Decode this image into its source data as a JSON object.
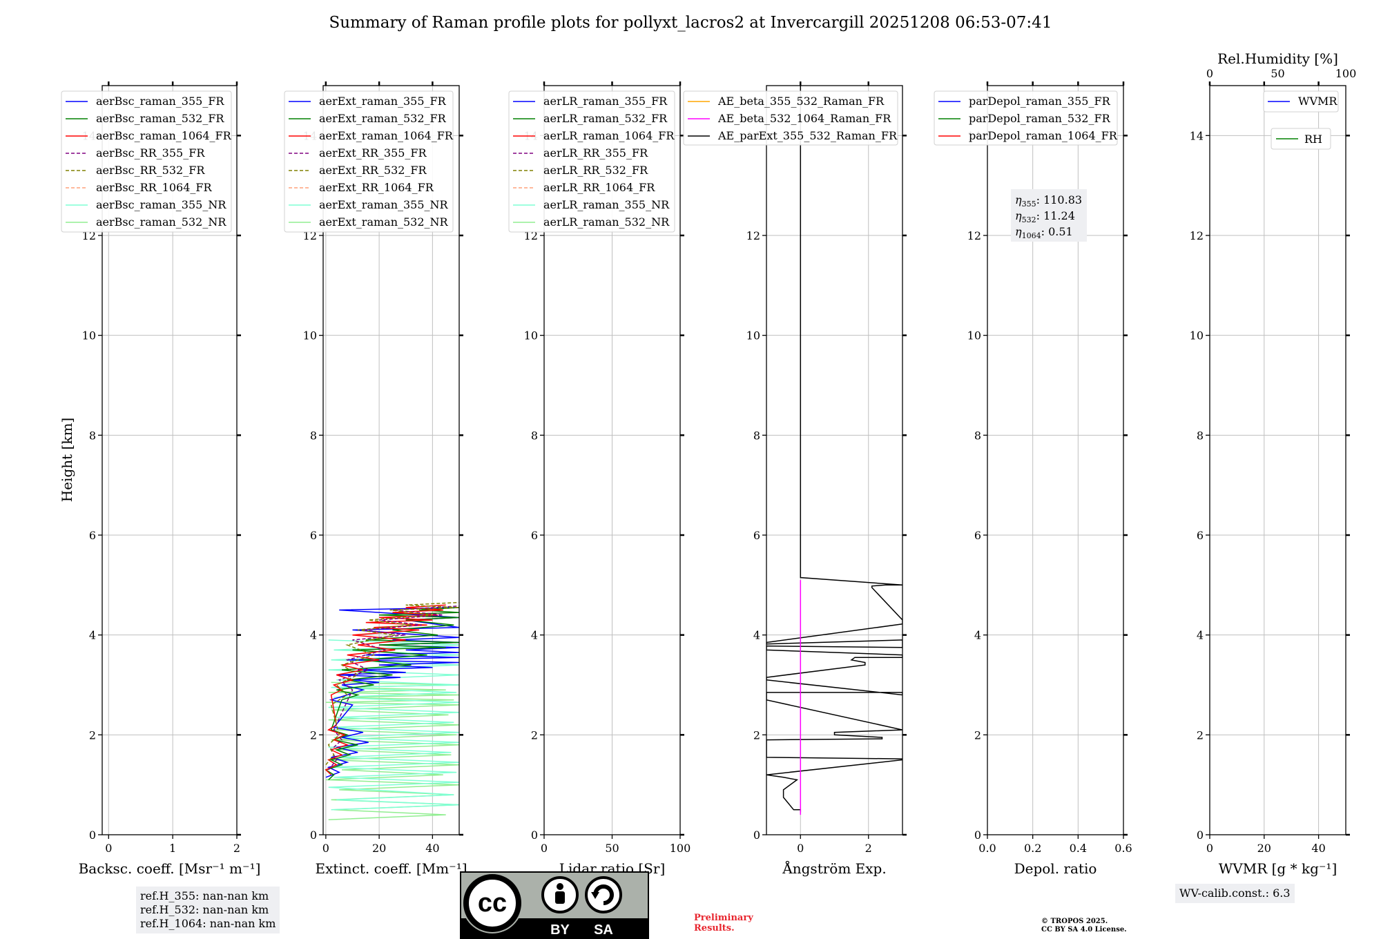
{
  "title": "Summary of Raman profile plots for pollyxt_lacros2 at Invercargill 20251208 06:53-07:41",
  "colors": {
    "blue": "#0000ff",
    "green": "#008000",
    "red": "#ff0000",
    "purple": "#800080",
    "olive": "#808000",
    "salmon": "#ffa07a",
    "cyan": "#7fffd4",
    "lightgreen": "#90ee90",
    "orange": "#ffa500",
    "magenta": "#ff00ff",
    "black": "#000000",
    "grid": "#bfbfbf",
    "legend_bg": "#ffffff",
    "note_bg": "#eeeff2",
    "prelim": "#e8262f"
  },
  "chart_data": [
    {
      "type": "line",
      "id": "backscatter",
      "xlabel": "Backsc. coeff. [Msr⁻¹ m⁻¹]",
      "ylabel": "Height [km]",
      "xlim": [
        -0.1,
        2
      ],
      "ylim": [
        0,
        15
      ],
      "xticks": [
        "0",
        "1",
        "2"
      ],
      "xtick_values": [
        0,
        1,
        2
      ],
      "yticks": [
        "0",
        "2",
        "4",
        "6",
        "8",
        "10",
        "12",
        "14"
      ],
      "legend": [
        {
          "label": "aerBsc_raman_355_FR",
          "color": "#0000ff",
          "style": "solid"
        },
        {
          "label": "aerBsc_raman_532_FR",
          "color": "#008000",
          "style": "solid"
        },
        {
          "label": "aerBsc_raman_1064_FR",
          "color": "#ff0000",
          "style": "solid"
        },
        {
          "label": "aerBsc_RR_355_FR",
          "color": "#800080",
          "style": "dashed"
        },
        {
          "label": "aerBsc_RR_532_FR",
          "color": "#808000",
          "style": "dashed"
        },
        {
          "label": "aerBsc_RR_1064_FR",
          "color": "#ffa07a",
          "style": "dashed"
        },
        {
          "label": "aerBsc_raman_355_NR",
          "color": "#7fffd4",
          "style": "solid"
        },
        {
          "label": "aerBsc_raman_532_NR",
          "color": "#90ee90",
          "style": "solid"
        }
      ],
      "series": []
    },
    {
      "type": "line",
      "id": "extinction",
      "xlabel": "Extinct. coeff. [Mm⁻¹]",
      "xlim": [
        -1,
        50
      ],
      "ylim": [
        0,
        15
      ],
      "xticks": [
        "0",
        "20",
        "40"
      ],
      "xtick_values": [
        0,
        20,
        40
      ],
      "yticks": [
        "0",
        "2",
        "4",
        "6",
        "8",
        "10",
        "12",
        "14"
      ],
      "legend": [
        {
          "label": "aerExt_raman_355_FR",
          "color": "#0000ff",
          "style": "solid"
        },
        {
          "label": "aerExt_raman_532_FR",
          "color": "#008000",
          "style": "solid"
        },
        {
          "label": "aerExt_raman_1064_FR",
          "color": "#ff0000",
          "style": "solid"
        },
        {
          "label": "aerExt_RR_355_FR",
          "color": "#800080",
          "style": "dashed"
        },
        {
          "label": "aerExt_RR_532_FR",
          "color": "#808000",
          "style": "dashed"
        },
        {
          "label": "aerExt_RR_1064_FR",
          "color": "#ffa07a",
          "style": "dashed"
        },
        {
          "label": "aerExt_raman_355_NR",
          "color": "#7fffd4",
          "style": "solid"
        },
        {
          "label": "aerExt_raman_532_NR",
          "color": "#90ee90",
          "style": "solid"
        }
      ],
      "series": [
        {
          "name": "aerExt_raman_532_NR",
          "color": "#90ee90",
          "x": [
            1,
            45,
            3,
            50,
            2,
            48,
            5,
            50,
            0,
            44,
            6,
            50,
            1,
            47,
            4,
            50,
            2,
            49,
            3,
            50,
            1,
            46,
            2,
            50,
            0,
            48,
            4,
            50,
            1,
            45,
            3,
            50,
            2
          ],
          "y": [
            0.3,
            0.4,
            0.5,
            0.6,
            0.7,
            0.8,
            0.9,
            1.0,
            1.1,
            1.2,
            1.3,
            1.4,
            1.5,
            1.6,
            1.7,
            1.8,
            1.9,
            2.0,
            2.1,
            2.2,
            2.3,
            2.4,
            2.5,
            2.6,
            2.65,
            2.7,
            2.75,
            2.8,
            2.85,
            2.9,
            2.95,
            3.0,
            3.05
          ]
        },
        {
          "name": "aerExt_raman_355_NR",
          "color": "#7fffd4",
          "x": [
            2,
            50,
            4,
            48,
            1,
            50,
            3,
            49,
            2,
            50,
            5,
            47,
            1,
            50,
            3,
            50,
            2,
            48,
            4,
            50,
            1,
            50,
            3,
            49,
            2,
            50,
            4,
            50,
            1,
            50,
            2,
            50,
            3,
            50,
            1
          ],
          "y": [
            0.5,
            0.6,
            0.7,
            0.8,
            0.95,
            1.05,
            1.15,
            1.25,
            1.35,
            1.45,
            1.55,
            1.65,
            1.75,
            1.85,
            1.95,
            2.05,
            2.15,
            2.25,
            2.35,
            2.45,
            2.55,
            2.65,
            2.75,
            2.85,
            2.95,
            3.0,
            3.1,
            3.2,
            3.3,
            3.4,
            3.5,
            3.6,
            3.7,
            3.8,
            3.9
          ]
        },
        {
          "name": "aerExt_raman_355_FR",
          "color": "#0000ff",
          "x": [
            0,
            5,
            1,
            8,
            2,
            12,
            4,
            16,
            6,
            14,
            3,
            10,
            2,
            8,
            14,
            6,
            20,
            10,
            28,
            4,
            30,
            12,
            40,
            20,
            50,
            8,
            50,
            15,
            50,
            30,
            50,
            20,
            50,
            25,
            50,
            10,
            50,
            30,
            50,
            5,
            50
          ],
          "y": [
            1.15,
            1.25,
            1.35,
            1.45,
            1.55,
            1.65,
            1.75,
            1.85,
            1.95,
            2.05,
            2.15,
            2.6,
            2.7,
            2.8,
            2.9,
            3.0,
            3.05,
            3.1,
            3.15,
            3.2,
            3.25,
            3.3,
            3.35,
            3.4,
            3.45,
            3.5,
            3.55,
            3.6,
            3.65,
            3.7,
            3.75,
            3.8,
            3.85,
            3.9,
            3.95,
            4.1,
            4.15,
            4.3,
            4.35,
            4.5,
            4.55
          ]
        },
        {
          "name": "aerExt_raman_532_FR",
          "color": "#008000",
          "x": [
            1,
            3,
            0,
            6,
            2,
            9,
            4,
            12,
            3,
            8,
            2,
            6,
            12,
            4,
            18,
            8,
            25,
            6,
            32,
            14,
            38,
            10,
            45,
            20,
            50,
            15,
            42,
            25,
            48,
            30,
            50,
            20,
            50,
            35,
            50
          ],
          "y": [
            1.1,
            1.2,
            1.3,
            1.4,
            1.5,
            1.6,
            1.7,
            1.8,
            1.9,
            2.0,
            2.1,
            2.7,
            2.8,
            2.9,
            3.0,
            3.1,
            3.2,
            3.3,
            3.4,
            3.5,
            3.6,
            3.7,
            3.75,
            3.8,
            3.85,
            3.9,
            4.0,
            4.1,
            4.2,
            4.3,
            4.35,
            4.4,
            4.45,
            4.5,
            4.55
          ]
        },
        {
          "name": "aerExt_raman_1064_FR",
          "color": "#ff0000",
          "x": [
            2,
            0,
            4,
            1,
            6,
            2,
            8,
            3,
            7,
            1,
            4,
            2,
            6,
            3,
            10,
            4,
            14,
            6,
            20,
            8,
            26,
            12,
            30,
            10,
            35,
            18,
            38,
            15,
            40,
            20,
            42,
            25,
            44,
            30,
            45
          ],
          "y": [
            1.2,
            1.3,
            1.4,
            1.5,
            1.6,
            1.7,
            1.8,
            1.9,
            2.0,
            2.1,
            2.2,
            2.8,
            2.9,
            3.0,
            3.1,
            3.2,
            3.3,
            3.4,
            3.5,
            3.6,
            3.7,
            3.8,
            3.9,
            4.0,
            4.1,
            4.15,
            4.2,
            4.25,
            4.3,
            4.35,
            4.4,
            4.45,
            4.5,
            4.55,
            4.6
          ]
        },
        {
          "name": "aerExt_RR_355_FR",
          "color": "#800080",
          "dashed": true,
          "x": [
            1,
            4,
            2,
            6,
            3,
            10,
            5,
            16,
            8,
            22,
            10,
            30,
            14,
            36,
            20,
            44,
            25,
            50
          ],
          "y": [
            1.3,
            1.5,
            1.7,
            1.9,
            2.1,
            2.9,
            3.1,
            3.3,
            3.5,
            3.7,
            3.9,
            4.0,
            4.1,
            4.2,
            4.3,
            4.4,
            4.5,
            4.58
          ]
        },
        {
          "name": "aerExt_RR_532_FR",
          "color": "#808000",
          "dashed": true,
          "x": [
            0,
            3,
            1,
            5,
            2,
            8,
            4,
            12,
            6,
            18,
            8,
            26,
            12,
            32,
            16,
            40,
            24,
            50,
            30,
            50
          ],
          "y": [
            1.4,
            1.6,
            1.8,
            2.0,
            2.6,
            2.8,
            3.0,
            3.2,
            3.4,
            3.6,
            3.8,
            4.0,
            4.1,
            4.2,
            4.3,
            4.4,
            4.5,
            4.55,
            4.6,
            4.65
          ]
        }
      ]
    },
    {
      "type": "line",
      "id": "lidar_ratio",
      "xlabel": "Lidar ratio [Sr]",
      "xlim": [
        0,
        100
      ],
      "ylim": [
        0,
        15
      ],
      "xticks": [
        "0",
        "50",
        "100"
      ],
      "xtick_values": [
        0,
        50,
        100
      ],
      "yticks": [
        "0",
        "2",
        "4",
        "6",
        "8",
        "10",
        "12",
        "14"
      ],
      "legend": [
        {
          "label": "aerLR_raman_355_FR",
          "color": "#0000ff",
          "style": "solid"
        },
        {
          "label": "aerLR_raman_532_FR",
          "color": "#008000",
          "style": "solid"
        },
        {
          "label": "aerLR_raman_1064_FR",
          "color": "#ff0000",
          "style": "solid"
        },
        {
          "label": "aerLR_RR_355_FR",
          "color": "#800080",
          "style": "dashed"
        },
        {
          "label": "aerLR_RR_532_FR",
          "color": "#808000",
          "style": "dashed"
        },
        {
          "label": "aerLR_RR_1064_FR",
          "color": "#ffa07a",
          "style": "dashed"
        },
        {
          "label": "aerLR_raman_355_NR",
          "color": "#7fffd4",
          "style": "solid"
        },
        {
          "label": "aerLR_raman_532_NR",
          "color": "#90ee90",
          "style": "solid"
        }
      ],
      "series": []
    },
    {
      "type": "line",
      "id": "angstrom",
      "xlabel": "Ångström Exp.",
      "xlim": [
        -1,
        3
      ],
      "ylim": [
        0,
        15
      ],
      "xticks": [
        "0",
        "2"
      ],
      "xtick_values": [
        0,
        2
      ],
      "yticks": [
        "0",
        "2",
        "4",
        "6",
        "8",
        "10",
        "12",
        "14"
      ],
      "legend": [
        {
          "label": "AE_beta_355_532_Raman_FR",
          "color": "#ffa500",
          "style": "solid"
        },
        {
          "label": "AE_beta_532_1064_Raman_FR",
          "color": "#ff00ff",
          "style": "solid"
        },
        {
          "label": "AE_parExt_355_532_Raman_FR",
          "color": "#000000",
          "style": "solid"
        }
      ],
      "series": [
        {
          "name": "AE_parExt_355_532_Raman_FR",
          "color": "#000000",
          "x": [
            0,
            0,
            3,
            2.5,
            2.1,
            2.1,
            3,
            3,
            -1,
            -1,
            3,
            3,
            -1,
            -1,
            3,
            3,
            1.6,
            1.5,
            1.9,
            1.9,
            -1,
            -1,
            3,
            3,
            -1,
            -1,
            3,
            3,
            1.0,
            1.0,
            2.4,
            2.4,
            -1,
            -1,
            3,
            3,
            -1,
            -0.5,
            -0.1,
            -0.5,
            -0.5,
            -0.2,
            0,
            0
          ],
          "y": [
            15,
            5.15,
            5.0,
            5.0,
            4.98,
            4.95,
            4.3,
            4.22,
            3.85,
            3.82,
            3.9,
            3.75,
            3.78,
            3.7,
            3.6,
            3.55,
            3.55,
            3.5,
            3.45,
            3.4,
            3.15,
            3.1,
            2.8,
            2.85,
            2.85,
            2.7,
            2.1,
            2.1,
            2.05,
            2.0,
            1.95,
            1.92,
            1.9,
            1.55,
            1.52,
            1.5,
            1.2,
            1.15,
            1.1,
            0.9,
            0.75,
            0.5,
            0.5,
            0.45
          ]
        },
        {
          "name": "AE_beta_532_1064_Raman_FR",
          "color": "#ff00ff",
          "x": [
            0,
            0
          ],
          "y": [
            0.4,
            5.1
          ]
        }
      ]
    },
    {
      "type": "line",
      "id": "depol",
      "xlabel": "Depol. ratio",
      "xlim": [
        0,
        0.6
      ],
      "ylim": [
        0,
        15
      ],
      "xticks": [
        "0.0",
        "0.2",
        "0.4",
        "0.6"
      ],
      "xtick_values": [
        0,
        0.2,
        0.4,
        0.6
      ],
      "yticks": [
        "0",
        "2",
        "4",
        "6",
        "8",
        "10",
        "12",
        "14"
      ],
      "legend": [
        {
          "label": "parDepol_raman_355_FR",
          "color": "#0000ff",
          "style": "solid"
        },
        {
          "label": "parDepol_raman_532_FR",
          "color": "#008000",
          "style": "solid"
        },
        {
          "label": "parDepol_raman_1064_FR",
          "color": "#ff0000",
          "style": "solid"
        }
      ],
      "annotations": {
        "eta355_value": ": 110.83",
        "eta532_value": ": 11.24",
        "eta1064_value": ": 0.51"
      },
      "series": []
    },
    {
      "type": "line",
      "id": "wvmr",
      "xlabel": "WVMR",
      "xlabel_unit": "[g * kg⁻¹]",
      "xlim": [
        0,
        50
      ],
      "ylim": [
        0,
        15
      ],
      "xticks": [
        "0",
        "20",
        "40"
      ],
      "xtick_values": [
        0,
        20,
        40
      ],
      "yticks": [
        "0",
        "2",
        "4",
        "6",
        "8",
        "10",
        "12",
        "14"
      ],
      "top_xlabel": "Rel.Humidity [%]",
      "top_xlim": [
        0,
        100
      ],
      "top_xticks": [
        "0",
        "50",
        "100"
      ],
      "top_xtick_values": [
        0,
        50,
        100
      ],
      "legend": [
        {
          "label": "WVMR",
          "color": "#0000ff",
          "style": "solid"
        }
      ],
      "legend2": [
        {
          "label": "RH",
          "color": "#008000",
          "style": "solid"
        }
      ],
      "series": []
    }
  ],
  "ref_heights": [
    "ref.H_355: nan-nan km",
    "ref.H_532: nan-nan km",
    "ref.H_1064: nan-nan km"
  ],
  "wv_calib": "WV-calib.const.: 6.3",
  "preliminary": [
    "Preliminary",
    "Results."
  ],
  "copyright": [
    "© TROPOS 2025.",
    "CC BY SA 4.0 License."
  ],
  "license_badge": {
    "by": "BY",
    "sa": "SA"
  }
}
